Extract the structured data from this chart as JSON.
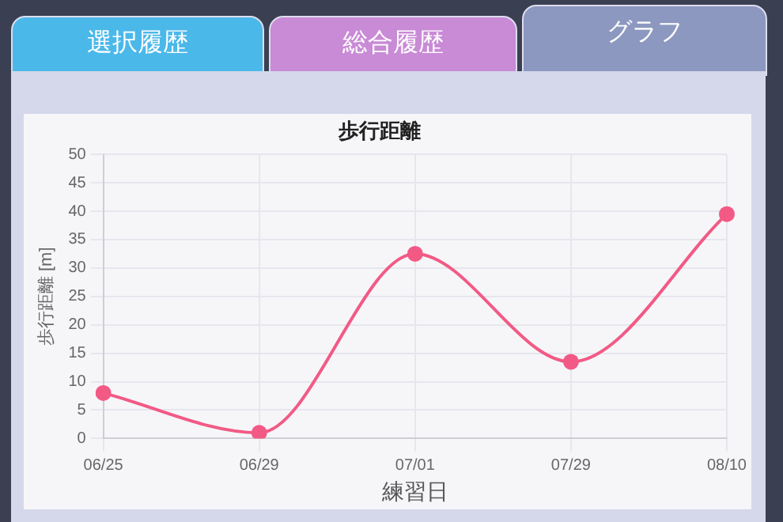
{
  "chart_data": {
    "type": "line",
    "title": "歩行距離",
    "xlabel": "練習日",
    "ylabel": "歩行距離 [m]",
    "annotations": [
      "選択履歴",
      "総合履歴",
      "グラフ"
    ],
    "categories": [
      "06/25",
      "06/29",
      "07/01",
      "07/29",
      "08/10"
    ],
    "series": [
      {
        "color": "#f25a85",
        "values": [
          8,
          1,
          32.5,
          13.5,
          39.5
        ]
      }
    ],
    "ylim": [
      0,
      50
    ],
    "yticks": [
      0,
      5,
      10,
      15,
      20,
      25,
      30,
      35,
      40,
      45,
      50
    ],
    "grid": true,
    "legend": false,
    "marker": "circle",
    "line_style": "solid"
  }
}
